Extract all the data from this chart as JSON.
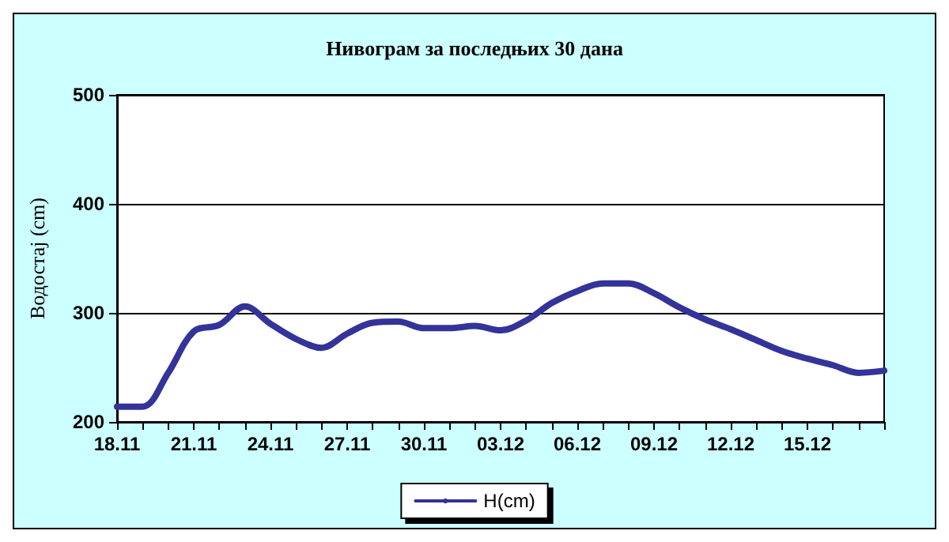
{
  "chart_data": {
    "type": "line",
    "title": "Нивограм за последњих 30 дана",
    "ylabel": "Водостај (cm)",
    "categories": [
      "18.11",
      null,
      null,
      "21.11",
      null,
      null,
      "24.11",
      null,
      null,
      "27.11",
      null,
      null,
      "30.11",
      null,
      null,
      "03.12",
      null,
      null,
      "06.12",
      null,
      null,
      "09.12",
      null,
      null,
      "12.12",
      null,
      null,
      "15.12",
      null,
      null,
      null
    ],
    "series": [
      {
        "name": "H(cm)",
        "color": "#333399",
        "values": [
          214,
          214,
          245,
          283,
          289,
          306,
          290,
          276,
          268,
          281,
          291,
          292,
          286,
          286,
          288,
          284,
          293,
          309,
          320,
          327,
          327,
          318,
          305,
          294,
          285,
          275,
          265,
          258,
          252,
          245,
          247
        ]
      }
    ],
    "ylim": [
      200,
      500
    ],
    "yticks": [
      200,
      300,
      400,
      500
    ],
    "grid": "y",
    "legend": "bottom",
    "marker": "none",
    "line_style": "solid"
  }
}
